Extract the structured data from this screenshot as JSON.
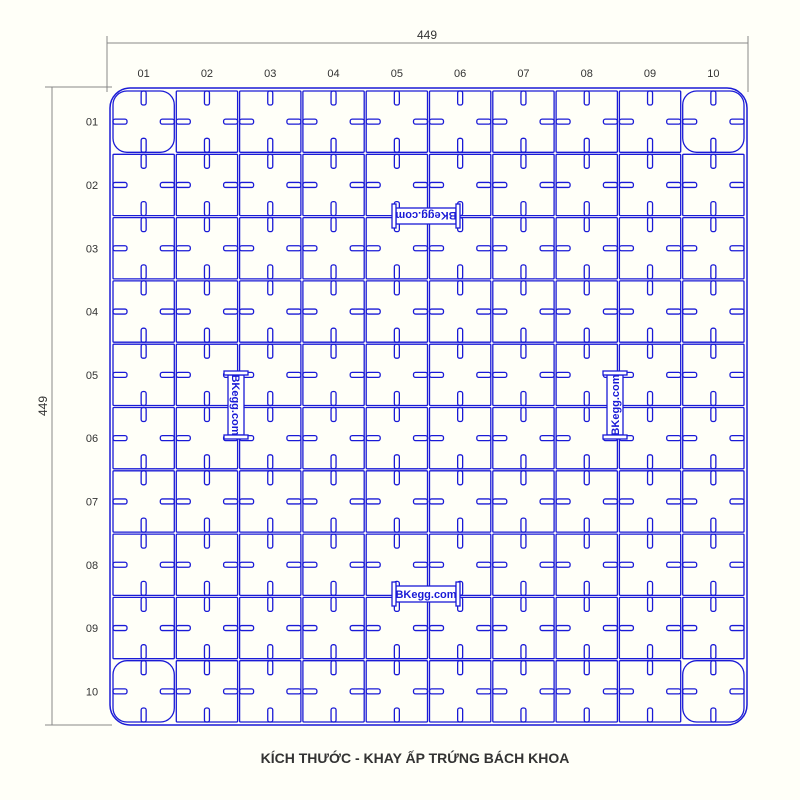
{
  "drawing": {
    "width_dimension": "449",
    "height_dimension": "449",
    "column_labels": [
      "01",
      "02",
      "03",
      "04",
      "05",
      "06",
      "07",
      "08",
      "09",
      "10"
    ],
    "row_labels": [
      "01",
      "02",
      "03",
      "04",
      "05",
      "06",
      "07",
      "08",
      "09",
      "10"
    ],
    "brand_labels": [
      "BKegg.com",
      "BKegg.com",
      "BKegg.com",
      "BKegg.com"
    ],
    "line_color": "#1a1ad6",
    "background_color": "#fffff8"
  },
  "caption": "KÍCH THƯỚC - KHAY ẤP TRỨNG BÁCH KHOA"
}
